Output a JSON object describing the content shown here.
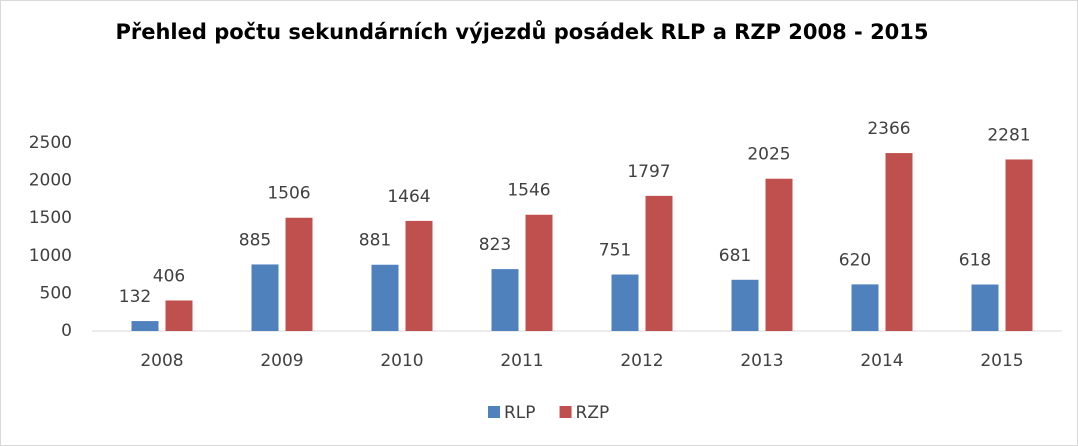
{
  "chart_data": {
    "type": "bar",
    "title": "Přehled počtu sekundárních výjezdů posádek RLP a RZP 2008 - 2015",
    "categories": [
      "2008",
      "2009",
      "2010",
      "2011",
      "2012",
      "2013",
      "2014",
      "2015"
    ],
    "series": [
      {
        "name": "RLP",
        "color": "#4f81bd",
        "values": [
          132,
          885,
          881,
          823,
          751,
          681,
          620,
          618
        ]
      },
      {
        "name": "RZP",
        "color": "#c0504d",
        "values": [
          406,
          1506,
          1464,
          1546,
          1797,
          2025,
          2366,
          2281
        ]
      }
    ],
    "ylim": [
      0,
      2500
    ],
    "yticks": [
      0,
      500,
      1000,
      1500,
      2000,
      2500
    ],
    "grid": false,
    "legend": "bottom"
  }
}
